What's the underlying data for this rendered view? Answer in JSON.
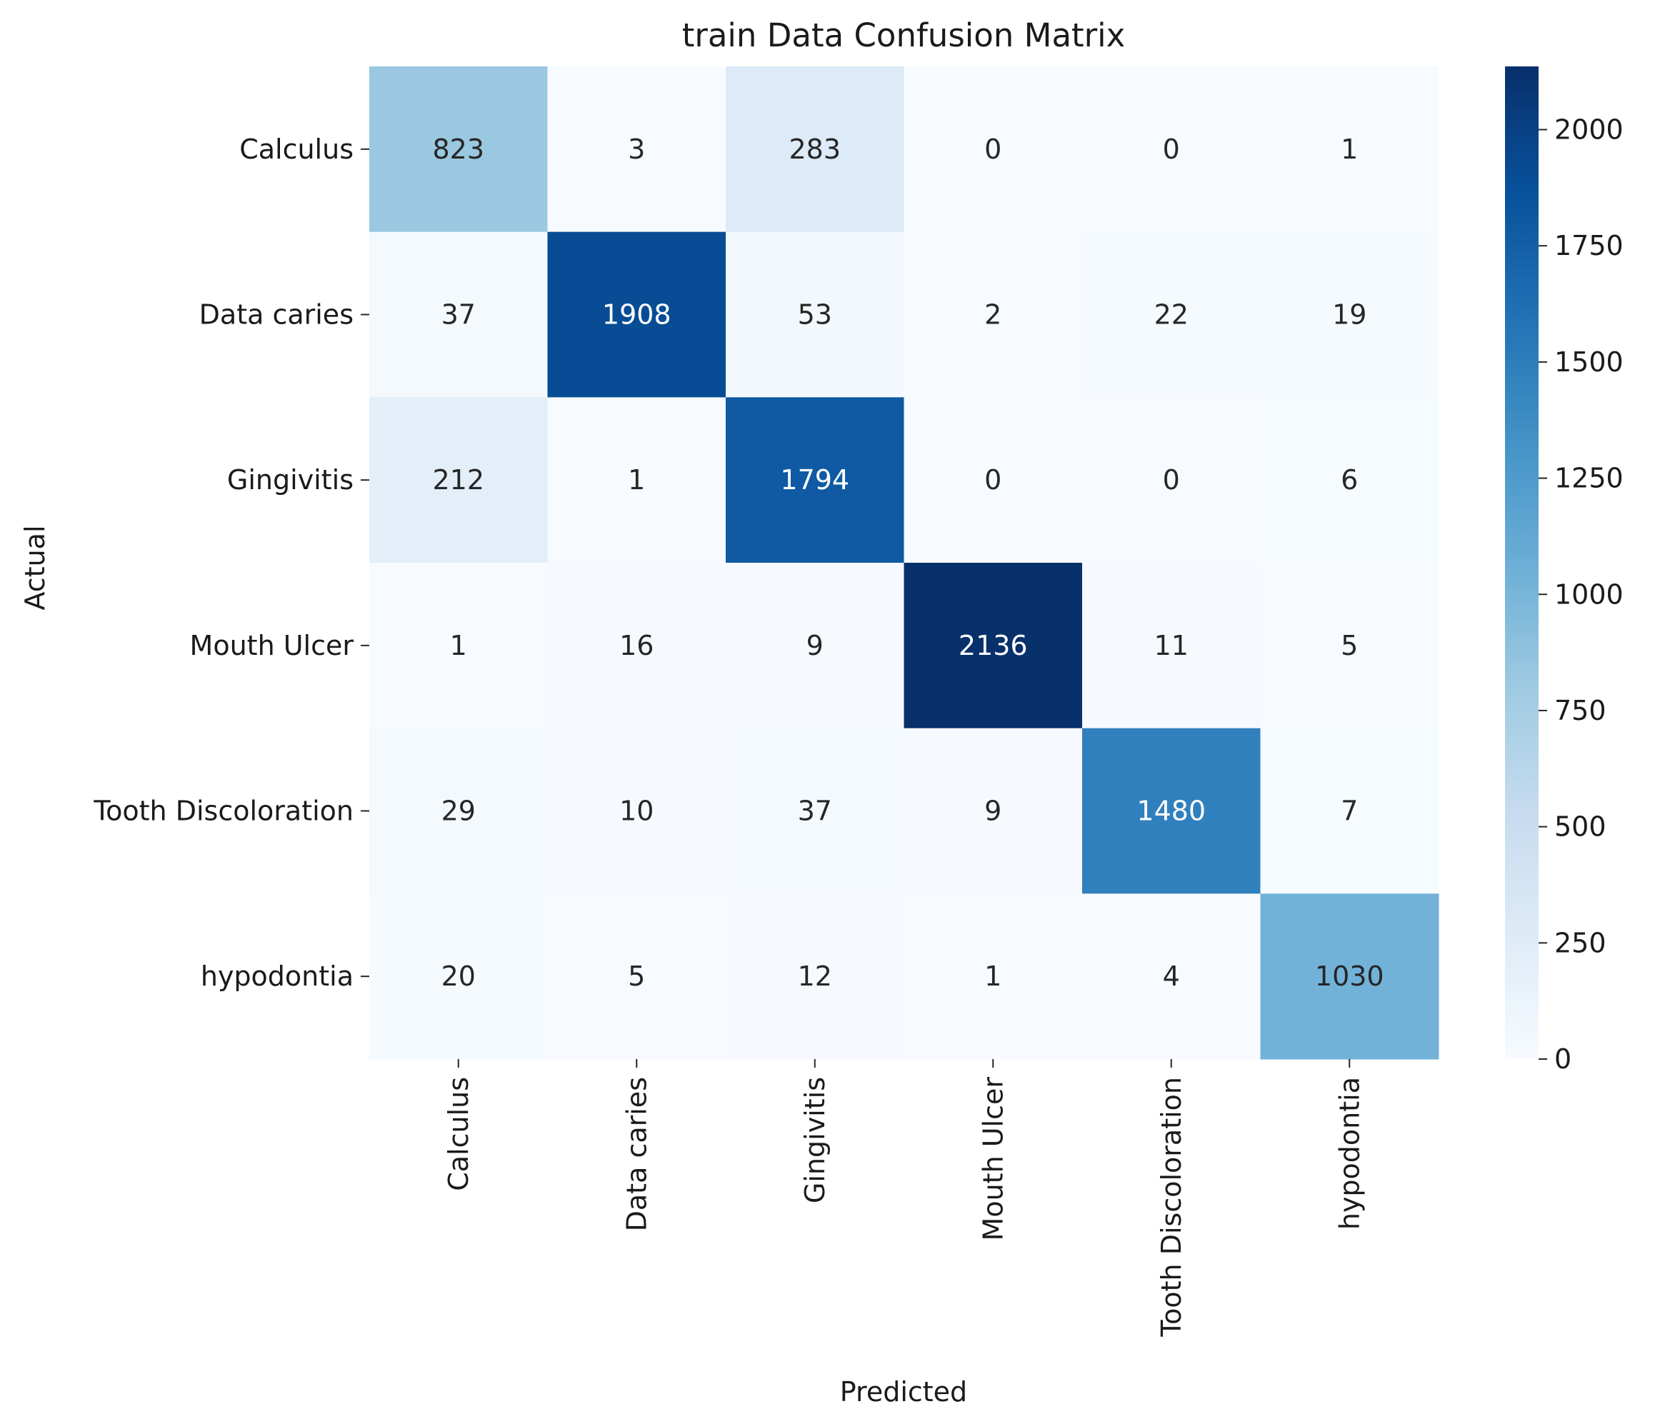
{
  "chart_data": {
    "type": "heatmap",
    "title": "train Data Confusion Matrix",
    "xlabel": "Predicted",
    "ylabel": "Actual",
    "x_categories": [
      "Calculus",
      "Data caries",
      "Gingivitis",
      "Mouth Ulcer",
      "Tooth Discoloration",
      "hypodontia"
    ],
    "y_categories": [
      "Calculus",
      "Data caries",
      "Gingivitis",
      "Mouth Ulcer",
      "Tooth Discoloration",
      "hypodontia"
    ],
    "values": [
      [
        823,
        3,
        283,
        0,
        0,
        1
      ],
      [
        37,
        1908,
        53,
        2,
        22,
        19
      ],
      [
        212,
        1,
        1794,
        0,
        0,
        6
      ],
      [
        1,
        16,
        9,
        2136,
        11,
        5
      ],
      [
        29,
        10,
        37,
        9,
        1480,
        7
      ],
      [
        20,
        5,
        12,
        1,
        4,
        1030
      ]
    ],
    "colormap": "Blues",
    "color_range": [
      0,
      2136
    ],
    "colorbar_ticks": [
      0,
      250,
      500,
      750,
      1000,
      1250,
      1500,
      1750,
      2000
    ]
  }
}
